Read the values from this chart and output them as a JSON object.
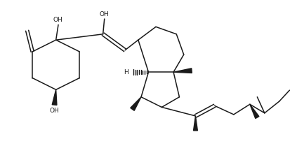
{
  "bg_color": "#ffffff",
  "line_color": "#1a1a1a",
  "wedge_color": "#1a1a1a",
  "dash_color": "#1a1a1a",
  "figsize": [
    4.23,
    2.19
  ],
  "dpi": 100,
  "xlim": [
    0,
    10
  ],
  "ylim": [
    0,
    5.2
  ]
}
